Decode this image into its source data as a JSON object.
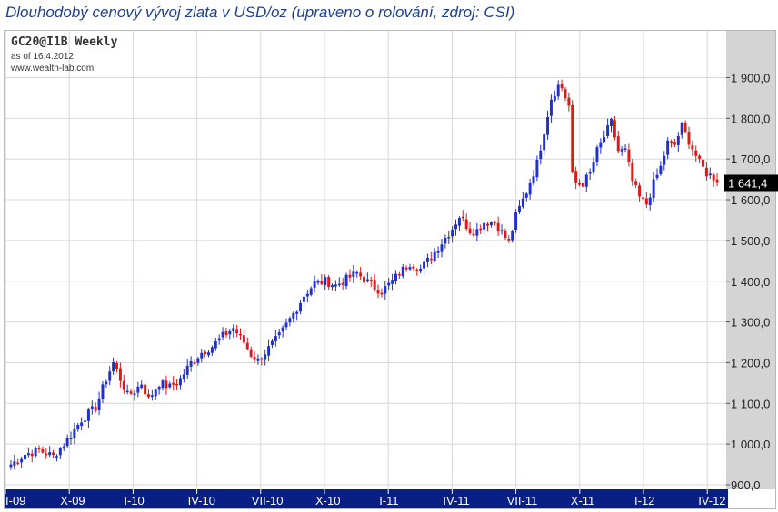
{
  "caption": "Dlouhodobý cenový vývoj zlata v USD/oz (upraveno o rolování, zdroj: CSI)",
  "header": {
    "symbol": "GC20@I1B Weekly",
    "as_of": "as of 16.4.2012",
    "source": "www.wealth-lab.com"
  },
  "colors": {
    "up": "#1f2fd0",
    "down": "#e01818",
    "grid": "#d8d8d8",
    "axis_panel": "#d4d4d4",
    "time_bar": "#0a1f86",
    "price_tag": "#000000"
  },
  "chart_data": {
    "type": "candlestick",
    "title": "GC20@I1B Weekly",
    "ylim": [
      900,
      1960
    ],
    "grid": true,
    "y_ticks": [
      {
        "value": 900,
        "label": "900,0"
      },
      {
        "value": 1000,
        "label": "1 000,0"
      },
      {
        "value": 1100,
        "label": "1 100,0"
      },
      {
        "value": 1200,
        "label": "1 200,0"
      },
      {
        "value": 1300,
        "label": "1 300,0"
      },
      {
        "value": 1400,
        "label": "1 400,0"
      },
      {
        "value": 1500,
        "label": "1 500,0"
      },
      {
        "value": 1600,
        "label": "1 600,0"
      },
      {
        "value": 1700,
        "label": "1 700,0"
      },
      {
        "value": 1800,
        "label": "1 800,0"
      },
      {
        "value": 1900,
        "label": "1 900,0"
      }
    ],
    "x_ticks": [
      "I-09",
      "X-09",
      "I-10",
      "IV-10",
      "VII-10",
      "X-10",
      "I-11",
      "IV-11",
      "VII-11",
      "X-11",
      "I-12",
      "IV-12"
    ],
    "last_price_label": "1 641,4",
    "last_price": 1641.4,
    "anchors": [
      [
        0,
        950
      ],
      [
        4,
        975
      ],
      [
        8,
        985
      ],
      [
        12,
        970
      ],
      [
        16,
        1010
      ],
      [
        20,
        1060
      ],
      [
        24,
        1090
      ],
      [
        27,
        1160
      ],
      [
        29,
        1200
      ],
      [
        31,
        1160
      ],
      [
        33,
        1120
      ],
      [
        35,
        1130
      ],
      [
        37,
        1150
      ],
      [
        39,
        1110
      ],
      [
        42,
        1150
      ],
      [
        45,
        1140
      ],
      [
        48,
        1160
      ],
      [
        51,
        1200
      ],
      [
        54,
        1225
      ],
      [
        57,
        1240
      ],
      [
        60,
        1265
      ],
      [
        63,
        1285
      ],
      [
        66,
        1250
      ],
      [
        68,
        1220
      ],
      [
        70,
        1205
      ],
      [
        73,
        1235
      ],
      [
        76,
        1265
      ],
      [
        80,
        1320
      ],
      [
        83,
        1365
      ],
      [
        86,
        1395
      ],
      [
        89,
        1400
      ],
      [
        92,
        1390
      ],
      [
        95,
        1405
      ],
      [
        98,
        1420
      ],
      [
        100,
        1405
      ],
      [
        103,
        1385
      ],
      [
        105,
        1375
      ],
      [
        108,
        1400
      ],
      [
        110,
        1420
      ],
      [
        113,
        1445
      ],
      [
        116,
        1430
      ],
      [
        119,
        1460
      ],
      [
        122,
        1495
      ],
      [
        125,
        1530
      ],
      [
        127,
        1560
      ],
      [
        130,
        1525
      ],
      [
        132,
        1525
      ],
      [
        134,
        1545
      ],
      [
        137,
        1545
      ],
      [
        139,
        1520
      ],
      [
        141,
        1495
      ],
      [
        143,
        1560
      ],
      [
        146,
        1620
      ],
      [
        149,
        1690
      ],
      [
        151,
        1770
      ],
      [
        153,
        1850
      ],
      [
        155,
        1880
      ],
      [
        156,
        1875
      ],
      [
        158,
        1830
      ],
      [
        159,
        1660
      ],
      [
        160,
        1640
      ],
      [
        162,
        1640
      ],
      [
        164,
        1665
      ],
      [
        166,
        1720
      ],
      [
        168,
        1755
      ],
      [
        170,
        1790
      ],
      [
        172,
        1720
      ],
      [
        174,
        1720
      ],
      [
        176,
        1645
      ],
      [
        178,
        1605
      ],
      [
        180,
        1590
      ],
      [
        182,
        1640
      ],
      [
        184,
        1680
      ],
      [
        186,
        1740
      ],
      [
        188,
        1735
      ],
      [
        190,
        1780
      ],
      [
        192,
        1745
      ],
      [
        195,
        1690
      ],
      [
        197,
        1665
      ],
      [
        199,
        1655
      ],
      [
        200,
        1641
      ]
    ]
  }
}
